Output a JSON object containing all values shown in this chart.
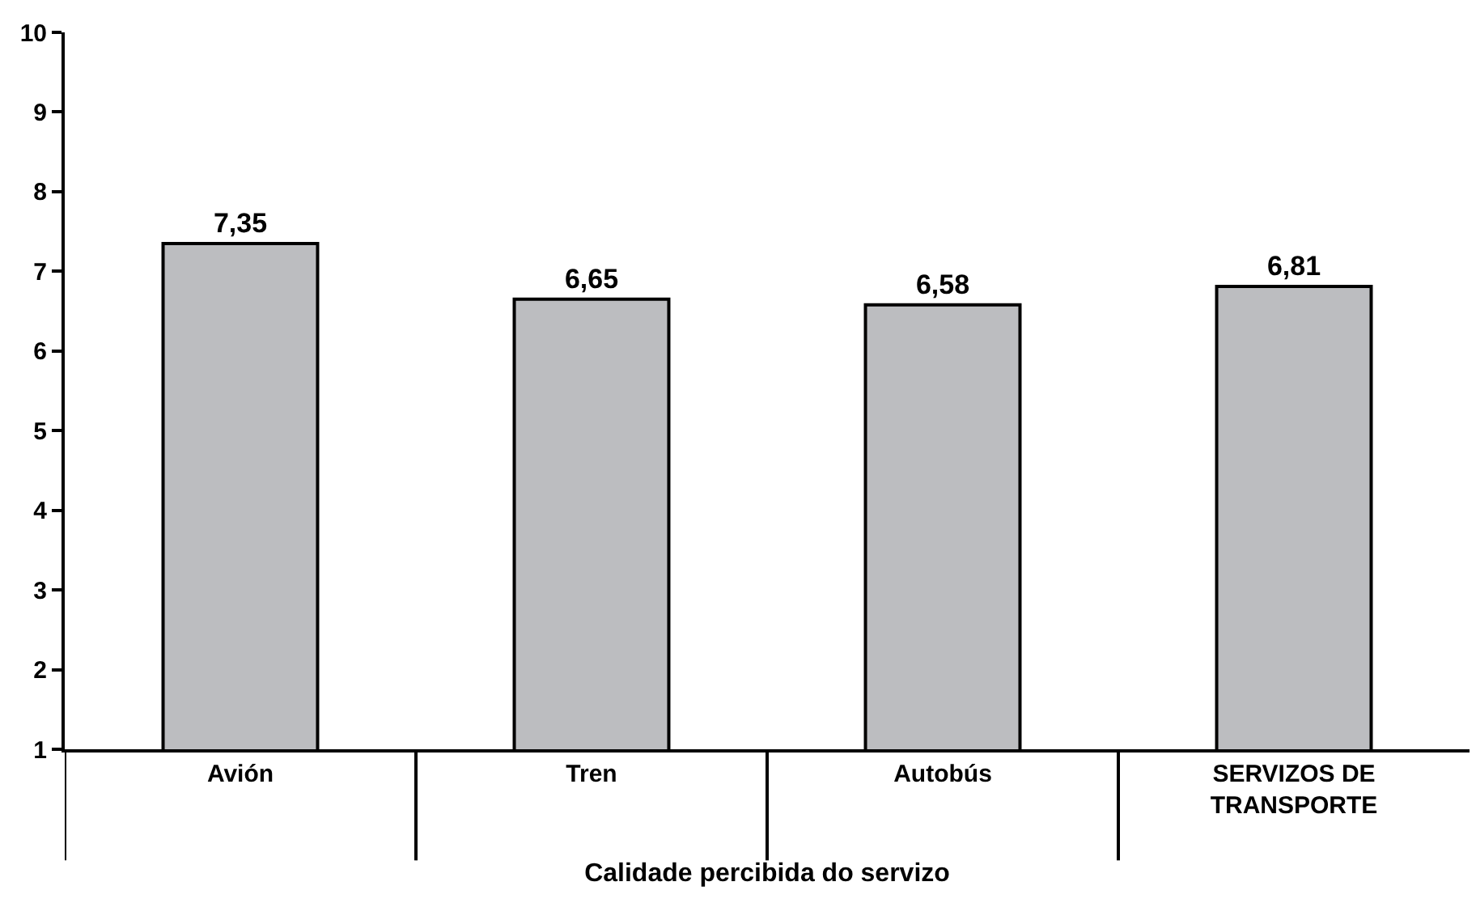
{
  "chart_data": {
    "type": "bar",
    "xlabel": "Calidade percibida do servizo",
    "categories": [
      "Avión",
      "Tren",
      "Autobús",
      "SERVIZOS DE\nTRANSPORTE"
    ],
    "values": [
      7.35,
      6.65,
      6.58,
      6.81
    ],
    "value_labels": [
      "7,35",
      "6,65",
      "6,58",
      "6,81"
    ],
    "color": "#bcbdc0",
    "ylim": [
      1,
      10
    ],
    "yticks": [
      1,
      2,
      3,
      4,
      5,
      6,
      7,
      8,
      9,
      10
    ]
  }
}
